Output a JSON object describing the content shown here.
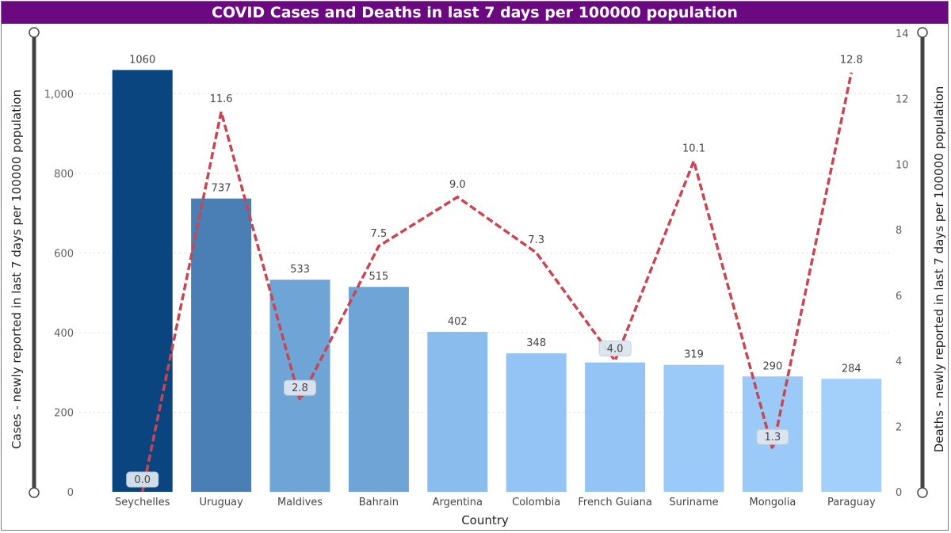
{
  "chart_data": {
    "type": "bar",
    "title": "COVID Cases and Deaths in last 7 days per 100000 population",
    "xlabel": "Country",
    "ylabel": "Cases - newly reported in last 7 days per 100000 population",
    "y2label": "Deaths - newly reported in last 7 days per 100000 population",
    "categories": [
      "Seychelles",
      "Uruguay",
      "Maldives",
      "Bahrain",
      "Argentina",
      "Colombia",
      "French Guiana",
      "Suriname",
      "Mongolia",
      "Paraguay"
    ],
    "series": [
      {
        "type": "bar",
        "axis": "left",
        "values": [
          1060,
          737,
          533,
          515,
          402,
          348,
          325,
          319,
          290,
          284
        ],
        "labels": [
          "1060",
          "737",
          "533",
          "515",
          "402",
          "348",
          "325",
          "319",
          "290",
          "284"
        ],
        "colors": [
          "#0a4580",
          "#4a7fb5",
          "#6fa4d7",
          "#6fa4d7",
          "#8bbcee",
          "#93c4f5",
          "#93c4f5",
          "#9bcaf8",
          "#9bcaf8",
          "#a3d0fb"
        ]
      },
      {
        "type": "line",
        "axis": "right",
        "style": "dashed",
        "color": "#c84551",
        "values": [
          0.0,
          11.6,
          2.8,
          7.5,
          9.0,
          7.3,
          4.0,
          10.1,
          1.3,
          12.8
        ],
        "labels": [
          "0.0",
          "11.6",
          "2.8",
          "7.5",
          "9.0",
          "7.3",
          "4.0",
          "10.1",
          "1.3",
          "12.8"
        ]
      }
    ],
    "ylim": [
      0,
      1150
    ],
    "y2lim": [
      0,
      14
    ],
    "yticks": [
      0,
      200,
      400,
      600,
      800,
      1000
    ],
    "ytick_labels": [
      "0",
      "200",
      "400",
      "600",
      "800",
      "1,000"
    ],
    "y2ticks": [
      0,
      2,
      4,
      6,
      8,
      10,
      12,
      14
    ],
    "y2tick_labels": [
      "0",
      "2",
      "4",
      "6",
      "8",
      "10",
      "12",
      "14"
    ],
    "grid": true,
    "title_bar_color": "#6b0a80"
  }
}
